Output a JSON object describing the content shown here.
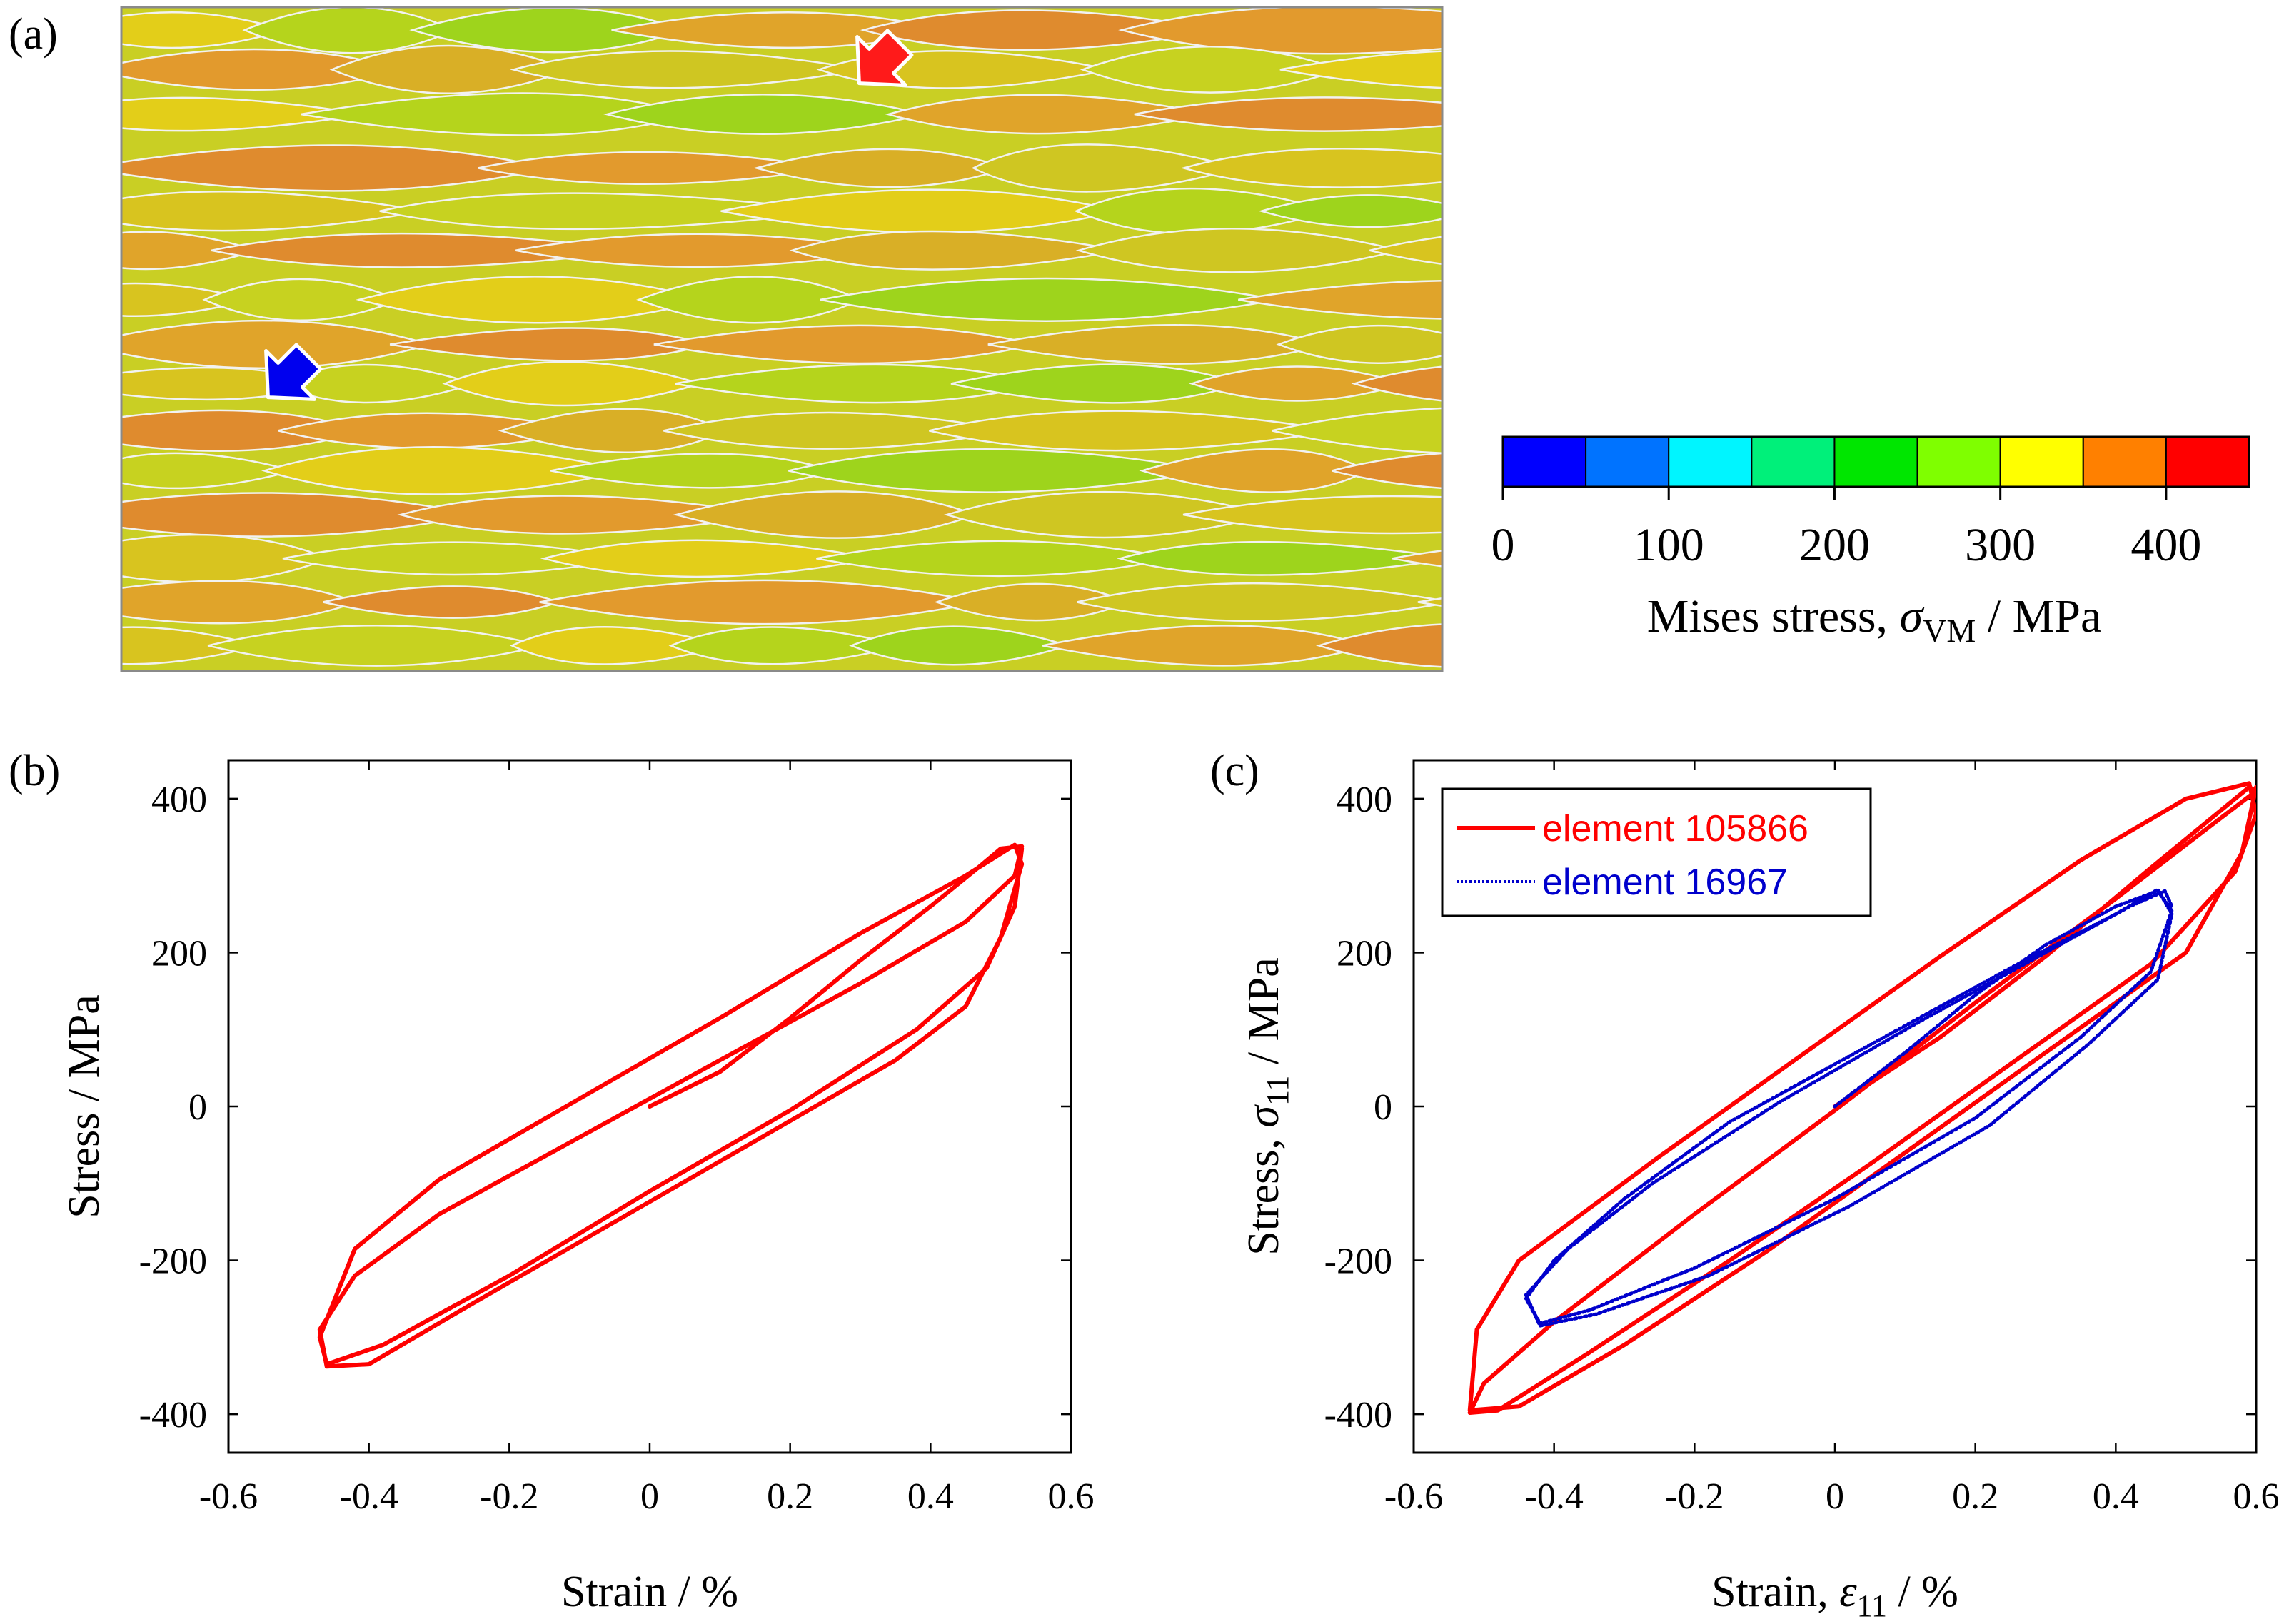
{
  "panels": {
    "a": {
      "label": "(a)"
    },
    "b": {
      "label": "(b)"
    },
    "c": {
      "label": "(c)"
    }
  },
  "colorbar": {
    "colors": [
      "#0000ff",
      "#0073ff",
      "#00f5ff",
      "#00f07a",
      "#00e600",
      "#7fff00",
      "#ffff00",
      "#ff8000",
      "#ff0000"
    ],
    "ticks": [
      "0",
      "100",
      "200",
      "300",
      "400"
    ],
    "label_main": "Mises stress, ",
    "label_symbol": "σ",
    "label_subscript": "VM",
    "label_units": " / MPa"
  },
  "map": {
    "grain_colors": [
      "#e3ce19",
      "#e0a42a",
      "#d9af26",
      "#c7d220",
      "#9ed41c",
      "#e29a2d",
      "#d8c41f",
      "#b5d41c",
      "#df8b2e",
      "#cfc622"
    ]
  },
  "chart_data": [
    {
      "id": "b",
      "type": "line",
      "xlabel": "Strain / %",
      "ylabel": "Stress / MPa",
      "xlim": [
        -0.6,
        0.6
      ],
      "ylim": [
        -450,
        450
      ],
      "xticks": [
        "-0.6",
        "-0.4",
        "-0.2",
        "0",
        "0.2",
        "0.4",
        "0.6"
      ],
      "yticks": [
        "-400",
        "-200",
        "0",
        "200",
        "400"
      ],
      "grid": false,
      "series": [
        {
          "color": "#ff0000",
          "style": "solid",
          "x": [
            0.0,
            0.1,
            0.2,
            0.3,
            0.4,
            0.47,
            0.5,
            0.53,
            0.52,
            0.45,
            0.3,
            0.1,
            -0.1,
            -0.3,
            -0.42,
            -0.47,
            -0.46,
            -0.4,
            -0.25,
            -0.05,
            0.15,
            0.35,
            0.45,
            0.5,
            0.53,
            0.52,
            0.45,
            0.3,
            0.1,
            -0.1,
            -0.3,
            -0.42,
            -0.47,
            -0.46,
            -0.38,
            -0.2,
            0.0,
            0.2,
            0.38,
            0.48,
            0.52,
            0.53
          ],
          "y": [
            0,
            45,
            115,
            190,
            260,
            312,
            335,
            338,
            300,
            240,
            160,
            60,
            -40,
            -140,
            -220,
            -290,
            -338,
            -335,
            -255,
            -150,
            -45,
            60,
            130,
            220,
            315,
            340,
            300,
            225,
            115,
            10,
            -95,
            -185,
            -300,
            -335,
            -310,
            -220,
            -110,
            -5,
            100,
            180,
            260,
            335
          ]
        }
      ]
    },
    {
      "id": "c",
      "type": "line",
      "xlabel_main": "Strain, ",
      "xlabel_symbol": "ε",
      "xlabel_subscript": "11",
      "xlabel_units": " / %",
      "ylabel_main": "Stress, ",
      "ylabel_symbol": "σ",
      "ylabel_subscript": "11",
      "ylabel_units": " / MPa",
      "xlim": [
        -0.6,
        0.6
      ],
      "ylim": [
        -450,
        450
      ],
      "xticks": [
        "-0.6",
        "-0.4",
        "-0.2",
        "0",
        "0.2",
        "0.4",
        "0.6"
      ],
      "yticks": [
        "-400",
        "-200",
        "0",
        "200",
        "400"
      ],
      "grid": false,
      "legend": "top-left",
      "series": [
        {
          "name": "element 105866",
          "color": "#ff0000",
          "style": "solid",
          "x": [
            0.0,
            0.15,
            0.3,
            0.45,
            0.55,
            0.59,
            0.6,
            0.55,
            0.4,
            0.2,
            0.0,
            -0.2,
            -0.4,
            -0.5,
            -0.52,
            -0.48,
            -0.35,
            -0.15,
            0.05,
            0.25,
            0.45,
            0.57,
            0.6,
            0.59,
            0.5,
            0.35,
            0.15,
            -0.05,
            -0.25,
            -0.45,
            -0.51,
            -0.52,
            -0.45,
            -0.3,
            -0.1,
            0.1,
            0.3,
            0.5,
            0.58,
            0.6
          ],
          "y": [
            0,
            90,
            195,
            310,
            385,
            415,
            410,
            375,
            270,
            135,
            -5,
            -140,
            -280,
            -360,
            -398,
            -395,
            -320,
            -200,
            -75,
            55,
            185,
            305,
            380,
            420,
            400,
            320,
            195,
            65,
            -65,
            -200,
            -290,
            -395,
            -390,
            -310,
            -190,
            -60,
            70,
            200,
            330,
            415
          ]
        },
        {
          "name": "element 16967",
          "color": "#0000cc",
          "style": "dotted",
          "x": [
            0.0,
            0.1,
            0.2,
            0.3,
            0.4,
            0.46,
            0.48,
            0.45,
            0.35,
            0.2,
            0.0,
            -0.2,
            -0.35,
            -0.42,
            -0.44,
            -0.4,
            -0.3,
            -0.15,
            0.05,
            0.25,
            0.4,
            0.46,
            0.48,
            0.46,
            0.36,
            0.22,
            0.02,
            -0.18,
            -0.34,
            -0.42,
            -0.44,
            -0.38,
            -0.26,
            -0.08,
            0.12,
            0.3,
            0.42,
            0.47,
            0.48
          ],
          "y": [
            0,
            70,
            145,
            210,
            260,
            280,
            255,
            175,
            90,
            -15,
            -120,
            -210,
            -265,
            -282,
            -250,
            -200,
            -120,
            -20,
            80,
            180,
            250,
            282,
            250,
            165,
            80,
            -25,
            -130,
            -220,
            -270,
            -285,
            -245,
            -185,
            -100,
            5,
            110,
            200,
            260,
            280,
            260
          ]
        }
      ]
    }
  ]
}
